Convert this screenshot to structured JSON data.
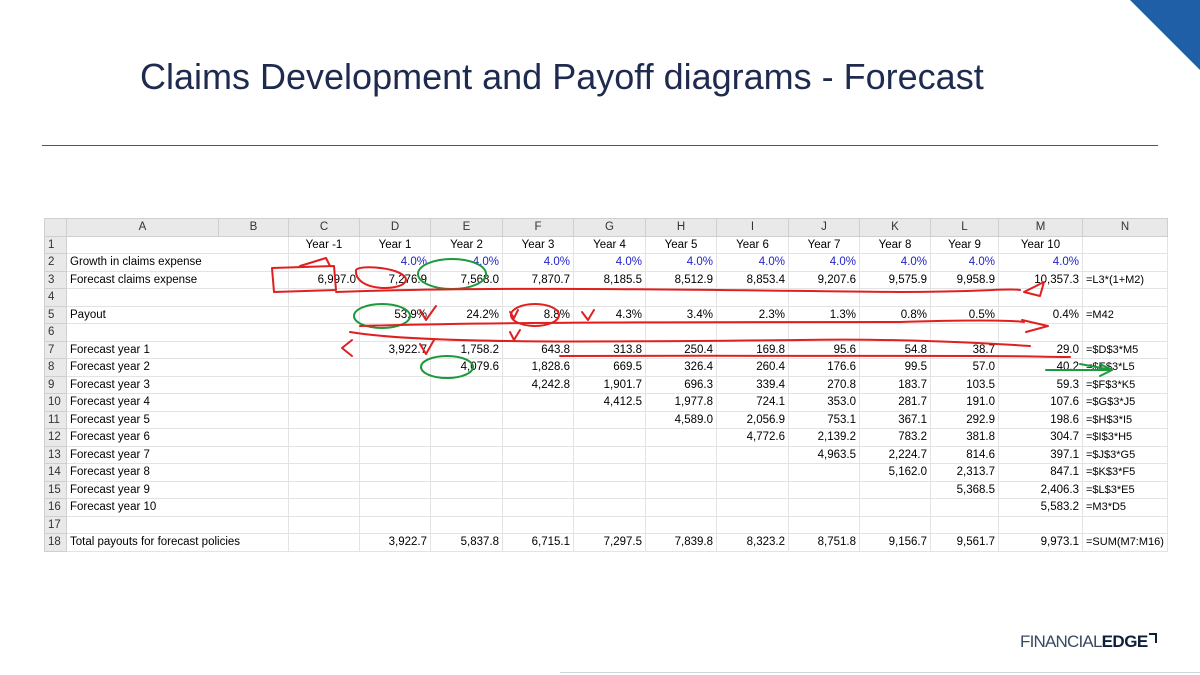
{
  "slide": {
    "title": "Claims Development and Payoff diagrams - Forecast",
    "logo_light": "FINANCIAL",
    "logo_bold": "EDGE"
  },
  "colors": {
    "title": "#1f2a4f",
    "accent_blue": "#1f5fa8",
    "annotation_red": "#e02020",
    "annotation_green": "#1a9a3a",
    "input_blue": "#2222c8"
  },
  "sheet": {
    "columns": [
      "A",
      "B",
      "C",
      "D",
      "E",
      "F",
      "G",
      "H",
      "I",
      "J",
      "K",
      "L",
      "M",
      "N"
    ],
    "rows": [
      {
        "n": "1",
        "label": "",
        "c": "Year -1",
        "d": "Year 1",
        "e": "Year 2",
        "f": "Year 3",
        "g": "Year 4",
        "h": "Year 5",
        "i": "Year 6",
        "j": "Year 7",
        "k": "Year 8",
        "l": "Year 9",
        "m": "Year 10",
        "n_": ""
      },
      {
        "n": "2",
        "label": "Growth in claims expense",
        "c": "",
        "d": "4.0%",
        "e": "4.0%",
        "f": "4.0%",
        "g": "4.0%",
        "h": "4.0%",
        "i": "4.0%",
        "j": "4.0%",
        "k": "4.0%",
        "l": "4.0%",
        "m": "4.0%",
        "n_": ""
      },
      {
        "n": "3",
        "label": "Forecast claims expense",
        "c": "6,997.0",
        "d": "7,276.9",
        "e": "7,568.0",
        "f": "7,870.7",
        "g": "8,185.5",
        "h": "8,512.9",
        "i": "8,853.4",
        "j": "9,207.6",
        "k": "9,575.9",
        "l": "9,958.9",
        "m": "10,357.3",
        "n_": "=L3*(1+M2)"
      },
      {
        "n": "4",
        "label": "",
        "c": "",
        "d": "",
        "e": "",
        "f": "",
        "g": "",
        "h": "",
        "i": "",
        "j": "",
        "k": "",
        "l": "",
        "m": "",
        "n_": ""
      },
      {
        "n": "5",
        "label": "Payout",
        "c": "",
        "d": "53.9%",
        "e": "24.2%",
        "f": "8.8%",
        "g": "4.3%",
        "h": "3.4%",
        "i": "2.3%",
        "j": "1.3%",
        "k": "0.8%",
        "l": "0.5%",
        "m": "0.4%",
        "n_": "=M42"
      },
      {
        "n": "6",
        "label": "",
        "c": "",
        "d": "",
        "e": "",
        "f": "",
        "g": "",
        "h": "",
        "i": "",
        "j": "",
        "k": "",
        "l": "",
        "m": "",
        "n_": ""
      },
      {
        "n": "7",
        "label": "Forecast year 1",
        "c": "",
        "d": "3,922.7",
        "e": "1,758.2",
        "f": "643.8",
        "g": "313.8",
        "h": "250.4",
        "i": "169.8",
        "j": "95.6",
        "k": "54.8",
        "l": "38.7",
        "m": "29.0",
        "n_": "=$D$3*M5"
      },
      {
        "n": "8",
        "label": "Forecast year 2",
        "c": "",
        "d": "",
        "e": "4,079.6",
        "f": "1,828.6",
        "g": "669.5",
        "h": "326.4",
        "i": "260.4",
        "j": "176.6",
        "k": "99.5",
        "l": "57.0",
        "m": "40.2",
        "n_": "=$E$3*L5"
      },
      {
        "n": "9",
        "label": "Forecast year 3",
        "c": "",
        "d": "",
        "e": "",
        "f": "4,242.8",
        "g": "1,901.7",
        "h": "696.3",
        "i": "339.4",
        "j": "270.8",
        "k": "183.7",
        "l": "103.5",
        "m": "59.3",
        "n_": "=$F$3*K5"
      },
      {
        "n": "10",
        "label": "Forecast year 4",
        "c": "",
        "d": "",
        "e": "",
        "f": "",
        "g": "4,412.5",
        "h": "1,977.8",
        "i": "724.1",
        "j": "353.0",
        "k": "281.7",
        "l": "191.0",
        "m": "107.6",
        "n_": "=$G$3*J5"
      },
      {
        "n": "11",
        "label": "Forecast year 5",
        "c": "",
        "d": "",
        "e": "",
        "f": "",
        "g": "",
        "h": "4,589.0",
        "i": "2,056.9",
        "j": "753.1",
        "k": "367.1",
        "l": "292.9",
        "m": "198.6",
        "n_": "=$H$3*I5"
      },
      {
        "n": "12",
        "label": "Forecast year 6",
        "c": "",
        "d": "",
        "e": "",
        "f": "",
        "g": "",
        "h": "",
        "i": "4,772.6",
        "j": "2,139.2",
        "k": "783.2",
        "l": "381.8",
        "m": "304.7",
        "n_": "=$I$3*H5"
      },
      {
        "n": "13",
        "label": "Forecast year 7",
        "c": "",
        "d": "",
        "e": "",
        "f": "",
        "g": "",
        "h": "",
        "i": "",
        "j": "4,963.5",
        "k": "2,224.7",
        "l": "814.6",
        "m": "397.1",
        "n_": "=$J$3*G5"
      },
      {
        "n": "14",
        "label": "Forecast year 8",
        "c": "",
        "d": "",
        "e": "",
        "f": "",
        "g": "",
        "h": "",
        "i": "",
        "j": "",
        "k": "5,162.0",
        "l": "2,313.7",
        "m": "847.1",
        "n_": "=$K$3*F5"
      },
      {
        "n": "15",
        "label": "Forecast year 9",
        "c": "",
        "d": "",
        "e": "",
        "f": "",
        "g": "",
        "h": "",
        "i": "",
        "j": "",
        "k": "",
        "l": "5,368.5",
        "m": "2,406.3",
        "n_": "=$L$3*E5"
      },
      {
        "n": "16",
        "label": "Forecast year 10",
        "c": "",
        "d": "",
        "e": "",
        "f": "",
        "g": "",
        "h": "",
        "i": "",
        "j": "",
        "k": "",
        "l": "",
        "m": "5,583.2",
        "n_": "=M3*D5"
      },
      {
        "n": "17",
        "label": "",
        "c": "",
        "d": "",
        "e": "",
        "f": "",
        "g": "",
        "h": "",
        "i": "",
        "j": "",
        "k": "",
        "l": "",
        "m": "",
        "n_": ""
      },
      {
        "n": "18",
        "label": "Total payouts for forecast policies",
        "c": "",
        "d": "3,922.7",
        "e": "5,837.8",
        "f": "6,715.1",
        "g": "7,297.5",
        "h": "7,839.8",
        "i": "8,323.2",
        "j": "8,751.8",
        "k": "9,156.7",
        "l": "9,561.7",
        "m": "9,973.1",
        "n_": "=SUM(M7:M16)"
      }
    ]
  }
}
